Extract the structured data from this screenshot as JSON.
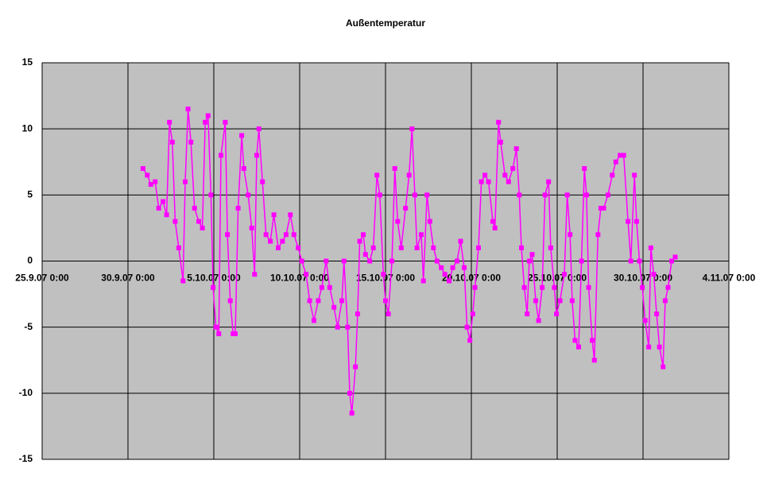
{
  "chart_data": {
    "type": "line",
    "title": "Außentemperatur",
    "x": [
      "30.9.07 21:00",
      "1.10.07 3:00",
      "1.10.07 8:00",
      "1.10.07 14:00",
      "1.10.07 19:00",
      "2.10.07 1:00",
      "2.10.07 6:00",
      "2.10.07 10:00",
      "2.10.07 14:00",
      "2.10.07 18:00",
      "2.10.07 23:00",
      "3.10.07 5:00",
      "3.10.07 8:00",
      "3.10.07 12:00",
      "3.10.07 16:00",
      "3.10.07 21:00",
      "4.10.07 3:00",
      "4.10.07 8:00",
      "4.10.07 12:00",
      "4.10.07 16:00",
      "4.10.07 20:00",
      "4.10.07 23:00",
      "5.10.07 3:00",
      "5.10.07 7:00",
      "5.10.07 10:00",
      "5.10.07 16:00",
      "5.10.07 19:00",
      "5.10.07 23:00",
      "6.10.07 3:00",
      "6.10.07 6:00",
      "6.10.07 10:00",
      "6.10.07 15:00",
      "6.10.07 18:00",
      "7.10.07 0:00",
      "7.10.07 5:00",
      "7.10.07 9:00",
      "7.10.07 12:00",
      "7.10.07 15:00",
      "7.10.07 20:00",
      "8.10.07 1:00",
      "8.10.07 7:00",
      "8.10.07 12:00",
      "8.10.07 18:00",
      "9.10.07 0:00",
      "9.10.07 5:00",
      "9.10.07 11:00",
      "9.10.07 16:00",
      "9.10.07 22:00",
      "10.10.07 3:00",
      "10.10.07 9:00",
      "10.10.07 14:00",
      "10.10.07 20:00",
      "11.10.07 2:00",
      "11.10.07 7:00",
      "11.10.07 13:00",
      "11.10.07 18:00",
      "12.10.07 0:00",
      "12.10.07 5:00",
      "12.10.07 11:00",
      "12.10.07 14:00",
      "12.10.07 19:00",
      "12.10.07 22:00",
      "13.10.07 1:00",
      "13.10.07 6:00",
      "13.10.07 9:00",
      "13.10.07 12:00",
      "13.10.07 17:00",
      "13.10.07 20:00",
      "14.10.07 2:00",
      "14.10.07 7:00",
      "14.10.07 12:00",
      "14.10.07 16:00",
      "14.10.07 21:00",
      "15.10.07 0:00",
      "15.10.07 4:00",
      "15.10.07 9:00",
      "15.10.07 13:00",
      "15.10.07 17:00",
      "15.10.07 22:00",
      "16.10.07 4:00",
      "16.10.07 9:00",
      "16.10.07 13:00",
      "16.10.07 17:00",
      "16.10.07 20:00",
      "17.10.07 2:00",
      "17.10.07 5:00",
      "17.10.07 10:00",
      "17.10.07 14:00",
      "17.10.07 19:00",
      "18.10.07 0:00",
      "18.10.07 6:00",
      "18.10.07 11:00",
      "18.10.07 17:00",
      "18.10.07 22:00",
      "19.10.07 4:00",
      "19.10.07 9:00",
      "19.10.07 14:00",
      "19.10.07 18:00",
      "19.10.07 22:00",
      "20.10.07 2:00",
      "20.10.07 5:00",
      "20.10.07 10:00",
      "20.10.07 14:00",
      "20.10.07 19:00",
      "21.10.07 0:00",
      "21.10.07 6:00",
      "21.10.07 9:00",
      "21.10.07 14:00",
      "21.10.07 17:00",
      "21.10.07 23:00",
      "22.10.07 4:00",
      "22.10.07 10:00",
      "22.10.07 15:00",
      "22.10.07 19:00",
      "22.10.07 22:00",
      "23.10.07 2:00",
      "23.10.07 6:00",
      "23.10.07 9:00",
      "23.10.07 13:00",
      "23.10.07 18:00",
      "23.10.07 22:00",
      "24.10.07 3:00",
      "24.10.07 7:00",
      "24.10.07 12:00",
      "24.10.07 15:00",
      "24.10.07 20:00",
      "24.10.07 23:00",
      "25.10.07 4:00",
      "25.10.07 10:00",
      "25.10.07 14:00",
      "25.10.07 18:00",
      "25.10.07 21:00",
      "26.10.07 1:00",
      "26.10.07 6:00",
      "26.10.07 10:00",
      "26.10.07 14:00",
      "26.10.07 17:00",
      "26.10.07 20:00",
      "27.10.07 1:00",
      "27.10.07 4:00",
      "27.10.07 9:00",
      "27.10.07 13:00",
      "27.10.07 17:00",
      "27.10.07 23:00",
      "28.10.07 5:00",
      "28.10.07 10:00",
      "28.10.07 16:00",
      "28.10.07 21:00",
      "29.10.07 3:00",
      "29.10.07 7:00",
      "29.10.07 12:00",
      "29.10.07 15:00",
      "29.10.07 19:00",
      "29.10.07 23:00",
      "30.10.07 3:00",
      "30.10.07 8:00",
      "30.10.07 11:00",
      "30.10.07 15:00",
      "30.10.07 19:00",
      "30.10.07 23:00",
      "31.10.07 4:00",
      "31.10.07 7:00",
      "31.10.07 11:00",
      "31.10.07 16:00",
      "31.10.07 21:00"
    ],
    "values": [
      7,
      6.5,
      5.8,
      6,
      4,
      4.5,
      3.5,
      10.5,
      9,
      3,
      1,
      -1.5,
      6,
      11.5,
      9,
      4,
      3,
      2.5,
      10.5,
      11,
      5,
      -2,
      -5,
      -5.5,
      8,
      10.5,
      2,
      -3,
      -5.5,
      -5.5,
      4,
      9.5,
      7,
      5,
      2.5,
      -1,
      8,
      10,
      6,
      2,
      1.5,
      3.5,
      1,
      1.5,
      2,
      3.5,
      2,
      1,
      0,
      -1,
      -3,
      -4.5,
      -3,
      -2,
      0,
      -2,
      -3.5,
      -5,
      -3,
      0,
      -5,
      -10,
      -11.5,
      -8,
      -4,
      1.5,
      2,
      0.5,
      0,
      1,
      6.5,
      5,
      -1,
      -3,
      -4,
      0,
      7,
      3,
      1,
      4,
      6.5,
      10,
      5,
      1,
      2,
      -1.5,
      5,
      3,
      1,
      0,
      -0.5,
      -1,
      -1.5,
      -0.5,
      0,
      1.5,
      -0.5,
      -5,
      -6,
      -4,
      -2,
      1,
      6,
      6.5,
      6,
      3,
      2.5,
      10.5,
      9,
      6.5,
      6,
      7,
      8.5,
      5,
      1,
      -2,
      -4,
      0,
      0.5,
      -3,
      -4.5,
      -2,
      5,
      6,
      1,
      -2,
      -4,
      -3,
      -1,
      5,
      2,
      -3,
      -6,
      -6.5,
      0,
      7,
      5,
      -2,
      -6,
      -7.5,
      2,
      4,
      4,
      5,
      6.5,
      7.5,
      8,
      8,
      3,
      0,
      6.5,
      3,
      0,
      -2,
      -4.5,
      -6.5,
      1,
      -1,
      -4,
      -6.5,
      -8,
      -3,
      -2,
      0,
      0.3
    ],
    "color": "#ff00ff",
    "xlim": [
      "25.9.07 0:00",
      "4.11.07 0:00"
    ],
    "xticks": [
      "25.9.07 0:00",
      "30.9.07 0:00",
      "5.10.07 0:00",
      "10.10.07 0:00",
      "15.10.07 0:00",
      "20.10.07 0:00",
      "25.10.07 0:00",
      "30.10.07 0:00",
      "4.11.07 0:00"
    ],
    "ylim": [
      -15,
      15
    ],
    "yticks": [
      -15,
      -10,
      -5,
      0,
      5,
      10,
      15
    ],
    "grid": true
  }
}
